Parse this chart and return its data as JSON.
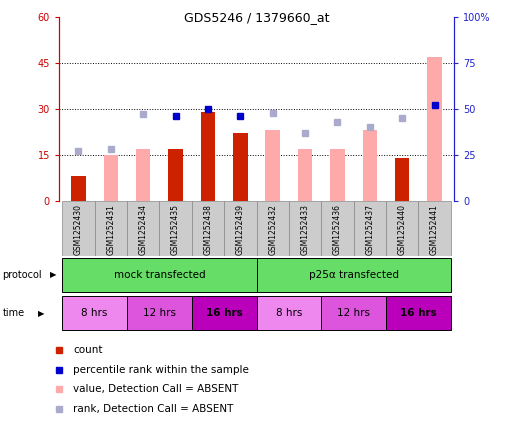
{
  "title": "GDS5246 / 1379660_at",
  "samples": [
    "GSM1252430",
    "GSM1252431",
    "GSM1252434",
    "GSM1252435",
    "GSM1252438",
    "GSM1252439",
    "GSM1252432",
    "GSM1252433",
    "GSM1252436",
    "GSM1252437",
    "GSM1252440",
    "GSM1252441"
  ],
  "count_values": [
    8,
    0,
    0,
    17,
    29,
    22,
    0,
    0,
    0,
    0,
    14,
    0
  ],
  "rank_values": [
    null,
    null,
    null,
    46,
    50,
    46,
    null,
    null,
    null,
    null,
    null,
    52
  ],
  "pink_bar_values": [
    8,
    15,
    17,
    null,
    null,
    null,
    23,
    17,
    17,
    23,
    null,
    47
  ],
  "blue_sq_values": [
    27,
    28,
    47,
    null,
    null,
    null,
    48,
    37,
    43,
    40,
    45,
    null
  ],
  "ylim_left": [
    0,
    60
  ],
  "ylim_right": [
    0,
    100
  ],
  "yticks_left": [
    0,
    15,
    30,
    45,
    60
  ],
  "ytick_labels_left": [
    "0",
    "15",
    "30",
    "45",
    "60"
  ],
  "yticks_right": [
    0,
    25,
    50,
    75,
    100
  ],
  "ytick_labels_right": [
    "0",
    "25",
    "50",
    "75",
    "100%"
  ],
  "bar_color_red": "#cc2200",
  "bar_color_pink": "#ffaaaa",
  "dot_color_blue_dark": "#0000cc",
  "dot_color_blue_light": "#aaaacc",
  "axis_left_color": "#cc0000",
  "axis_right_color": "#2222cc",
  "grid_color": "#000000",
  "sample_bg_color": "#cccccc",
  "proto_color": "#66dd66",
  "time_colors": [
    "#ee88ee",
    "#dd55dd",
    "#bb00bb",
    "#ee88ee",
    "#dd55dd",
    "#bb00bb"
  ],
  "time_labels": [
    "8 hrs",
    "12 hrs",
    "16 hrs",
    "8 hrs",
    "12 hrs",
    "16 hrs"
  ],
  "time_bold": [
    false,
    false,
    true,
    false,
    false,
    true
  ],
  "legend_items": [
    {
      "color": "#cc2200",
      "label": "count"
    },
    {
      "color": "#0000cc",
      "label": "percentile rank within the sample"
    },
    {
      "color": "#ffaaaa",
      "label": "value, Detection Call = ABSENT"
    },
    {
      "color": "#aaaacc",
      "label": "rank, Detection Call = ABSENT"
    }
  ]
}
